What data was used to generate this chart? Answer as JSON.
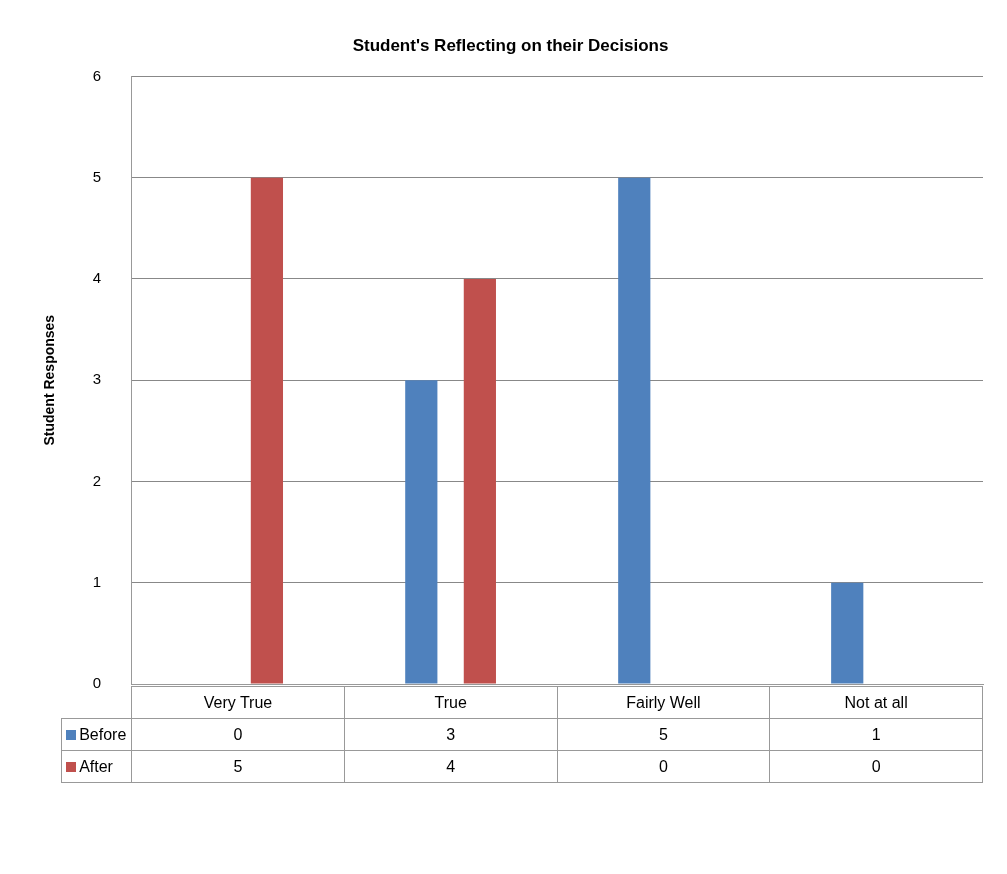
{
  "chart_data": {
    "type": "bar",
    "title": "Student's Reflecting on their Decisions",
    "ylabel": "Student Responses",
    "categories": [
      "Very True",
      "True",
      "Fairly Well",
      "Not at all"
    ],
    "series": [
      {
        "name": "Before",
        "color": "#4f81bd",
        "values": [
          0,
          3,
          5,
          1
        ]
      },
      {
        "name": "After",
        "color": "#c0504d",
        "values": [
          5,
          4,
          0,
          0
        ]
      }
    ],
    "ylim": [
      0,
      6
    ],
    "yticks": [
      0,
      1,
      2,
      3,
      4,
      5,
      6
    ],
    "grid": "y",
    "legend": "bottom",
    "data_labels": true
  }
}
